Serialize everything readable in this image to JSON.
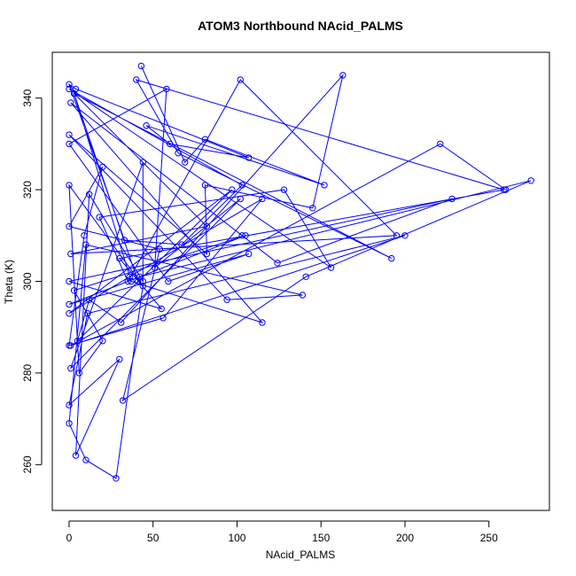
{
  "chart_data": {
    "type": "scatter",
    "title": "ATOM3 Northbound NAcid_PALMS",
    "xlabel": "NAcid_PALMS",
    "ylabel": "Theta (K)",
    "xlim": [
      -10,
      286
    ],
    "ylim": [
      250,
      350
    ],
    "xticks": [
      0,
      50,
      100,
      150,
      200,
      250
    ],
    "yticks": [
      260,
      280,
      300,
      320,
      340
    ],
    "grid": false,
    "legend": "none",
    "color": "#0000ff",
    "point_style": "open-circle",
    "connected": true,
    "series": [
      {
        "x": [
          43,
          69,
          81,
          152,
          46,
          60,
          107,
          4,
          0,
          33,
          67,
          103,
          0,
          156,
          128,
          18,
          35,
          102,
          195,
          1,
          82,
          3,
          37,
          115,
          1,
          103,
          124,
          228,
          0,
          55,
          30,
          259,
          40,
          65,
          192,
          3,
          41,
          42,
          275,
          141,
          32,
          54,
          0,
          20,
          9,
          0,
          56,
          115,
          36,
          0,
          97,
          5,
          12,
          31,
          163,
          145,
          81,
          82,
          0,
          94,
          139,
          10,
          0,
          10,
          28,
          44,
          0,
          6,
          20,
          3,
          105,
          0,
          107,
          59,
          0,
          58,
          51,
          102,
          1,
          44,
          44,
          12,
          4,
          30,
          0,
          11,
          200,
          1,
          221,
          260
        ],
        "y": [
          347,
          326,
          331,
          321,
          334,
          330,
          327,
          342,
          343,
          309,
          308,
          321,
          342,
          303,
          320,
          314,
          300,
          344,
          310,
          306,
          312,
          341,
          300,
          291,
          339,
          310,
          304,
          318,
          300,
          294,
          305,
          320,
          344,
          328,
          305,
          341,
          300,
          301,
          322,
          301,
          274,
          307,
          312,
          325,
          310,
          286,
          292,
          318,
          301,
          293,
          320,
          287,
          296,
          291,
          345,
          316,
          321,
          306,
          332,
          296,
          297,
          308,
          269,
          261,
          257,
          299,
          321,
          280,
          287,
          298,
          310,
          295,
          306,
          300,
          330,
          342,
          303,
          318,
          281,
          326,
          300,
          319,
          262,
          283,
          273,
          293,
          310,
          286,
          330,
          320
        ]
      }
    ]
  }
}
